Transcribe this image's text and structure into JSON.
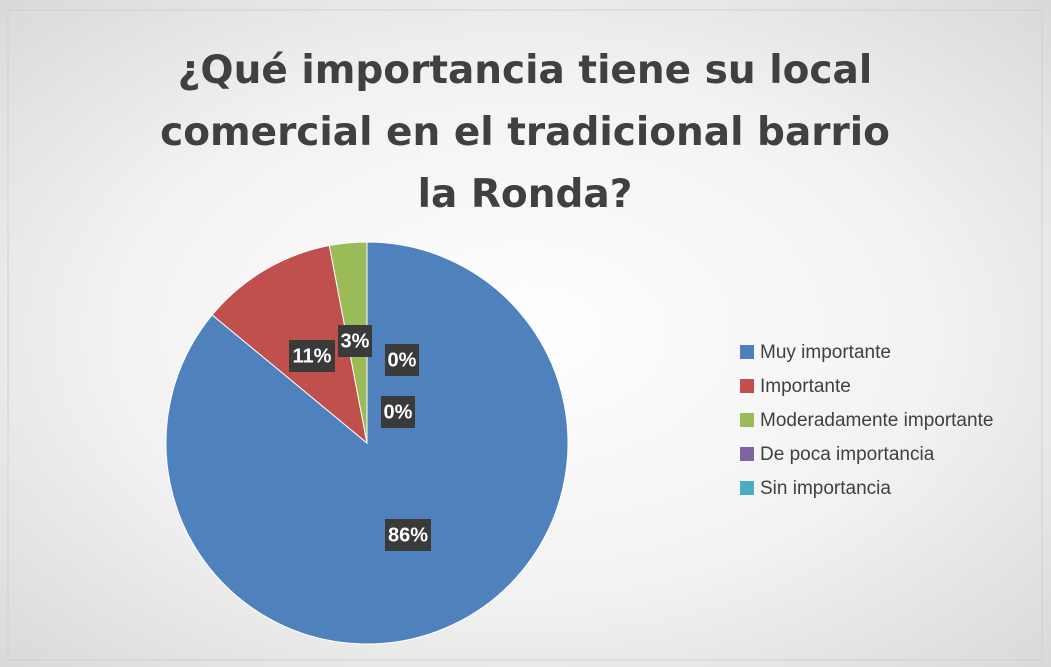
{
  "chart_data": {
    "type": "pie",
    "title": "¿Qué importancia tiene su local comercial en el tradicional barrio la Ronda?",
    "categories": [
      "Muy importante",
      "Importante",
      "Moderadamente importante",
      "De poca importancia",
      "Sin importancia"
    ],
    "values": [
      86,
      11,
      3,
      0,
      0
    ],
    "value_labels": [
      "86%",
      "11%",
      "3%",
      "0%",
      "0%"
    ],
    "colors": [
      "#4f81bd",
      "#c0504d",
      "#9bbb59",
      "#8064a2",
      "#4bacc6"
    ],
    "legend": "right"
  }
}
